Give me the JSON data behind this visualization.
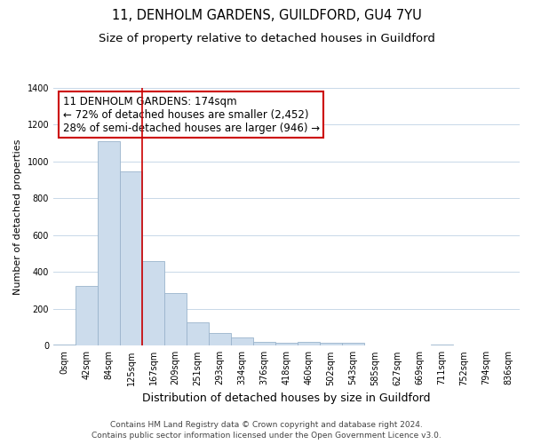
{
  "title": "11, DENHOLM GARDENS, GUILDFORD, GU4 7YU",
  "subtitle": "Size of property relative to detached houses in Guildford",
  "xlabel": "Distribution of detached houses by size in Guildford",
  "ylabel": "Number of detached properties",
  "bar_labels": [
    "0sqm",
    "42sqm",
    "84sqm",
    "125sqm",
    "167sqm",
    "209sqm",
    "251sqm",
    "293sqm",
    "334sqm",
    "376sqm",
    "418sqm",
    "460sqm",
    "502sqm",
    "543sqm",
    "585sqm",
    "627sqm",
    "669sqm",
    "711sqm",
    "752sqm",
    "794sqm",
    "836sqm"
  ],
  "bar_values": [
    8,
    325,
    1110,
    945,
    460,
    285,
    125,
    68,
    43,
    22,
    15,
    20,
    15,
    15,
    0,
    0,
    0,
    8,
    0,
    0,
    0
  ],
  "bar_color": "#ccdcec",
  "bar_edge_color": "#9ab4cc",
  "vline_x": 3.5,
  "vline_color": "#cc0000",
  "ylim": [
    0,
    1400
  ],
  "yticks": [
    0,
    200,
    400,
    600,
    800,
    1000,
    1200,
    1400
  ],
  "annotation_title": "11 DENHOLM GARDENS: 174sqm",
  "annotation_line1": "← 72% of detached houses are smaller (2,452)",
  "annotation_line2": "28% of semi-detached houses are larger (946) →",
  "annotation_box_color": "#ffffff",
  "annotation_box_edge": "#cc0000",
  "footer1": "Contains HM Land Registry data © Crown copyright and database right 2024.",
  "footer2": "Contains public sector information licensed under the Open Government Licence v3.0.",
  "bg_color": "#ffffff",
  "grid_color": "#c8d8e8",
  "title_fontsize": 10.5,
  "subtitle_fontsize": 9.5,
  "ylabel_fontsize": 8,
  "xlabel_fontsize": 9,
  "tick_fontsize": 7,
  "ann_fontsize": 8.5,
  "footer_fontsize": 6.5
}
